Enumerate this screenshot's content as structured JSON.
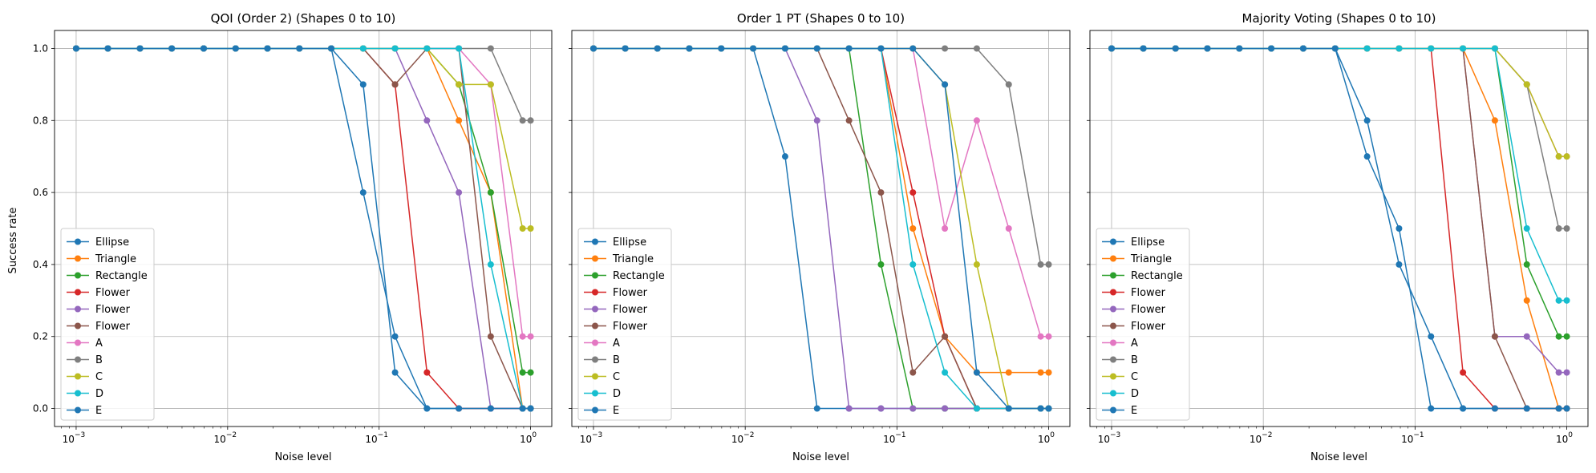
{
  "figure": {
    "ylabel": "Success rate"
  },
  "chart_data": [
    {
      "type": "line",
      "title": "QOI (Order 2) (Shapes 0 to 10)",
      "xlabel": "Noise level",
      "ylabel": "Success rate",
      "xscale": "log",
      "xlim": [
        0.00072,
        1.38
      ],
      "ylim": [
        -0.05,
        1.05
      ],
      "yticks": [
        "0.0",
        "0.2",
        "0.4",
        "0.6",
        "0.8",
        "1.0"
      ],
      "xticks": [
        {
          "base": "10",
          "exp": "−3"
        },
        {
          "base": "10",
          "exp": "−2"
        },
        {
          "base": "10",
          "exp": "−1"
        },
        {
          "base": "10",
          "exp": "0"
        }
      ],
      "grid": true,
      "legend": "lower-left",
      "x": [
        0.001,
        0.00162,
        0.00264,
        0.00428,
        0.00695,
        0.01129,
        0.01833,
        0.02976,
        0.04833,
        0.07848,
        0.12743,
        0.20691,
        0.33598,
        0.54556,
        0.88587,
        1.0
      ],
      "series": [
        {
          "name": "Ellipse",
          "color": "#1f77b4",
          "values": [
            1,
            1,
            1,
            1,
            1,
            1,
            1,
            1,
            1,
            0.6,
            0.2,
            0,
            0,
            0,
            0,
            0
          ]
        },
        {
          "name": "Triangle",
          "color": "#ff7f0e",
          "values": [
            1,
            1,
            1,
            1,
            1,
            1,
            1,
            1,
            1,
            1,
            1,
            1,
            0.8,
            0.6,
            0,
            0
          ]
        },
        {
          "name": "Rectangle",
          "color": "#2ca02c",
          "values": [
            1,
            1,
            1,
            1,
            1,
            1,
            1,
            1,
            1,
            1,
            1,
            1,
            0.9,
            0.6,
            0.1,
            0.1
          ]
        },
        {
          "name": "Flower",
          "color": "#d62728",
          "values": [
            1,
            1,
            1,
            1,
            1,
            1,
            1,
            1,
            1,
            1,
            0.9,
            0.1,
            0,
            0,
            0,
            0
          ]
        },
        {
          "name": "Flower",
          "color": "#9467bd",
          "values": [
            1,
            1,
            1,
            1,
            1,
            1,
            1,
            1,
            1,
            1,
            1,
            0.8,
            0.6,
            0,
            0,
            0
          ]
        },
        {
          "name": "Flower",
          "color": "#8c564b",
          "values": [
            1,
            1,
            1,
            1,
            1,
            1,
            1,
            1,
            1,
            1,
            0.9,
            1,
            1,
            0.2,
            0,
            0
          ]
        },
        {
          "name": "A",
          "color": "#e377c2",
          "values": [
            1,
            1,
            1,
            1,
            1,
            1,
            1,
            1,
            1,
            1,
            1,
            1,
            1,
            0.9,
            0.2,
            0.2
          ]
        },
        {
          "name": "B",
          "color": "#7f7f7f",
          "values": [
            1,
            1,
            1,
            1,
            1,
            1,
            1,
            1,
            1,
            1,
            1,
            1,
            1,
            1,
            0.8,
            0.8
          ]
        },
        {
          "name": "C",
          "color": "#bcbd22",
          "values": [
            1,
            1,
            1,
            1,
            1,
            1,
            1,
            1,
            1,
            1,
            1,
            1,
            0.9,
            0.9,
            0.5,
            0.5
          ]
        },
        {
          "name": "D",
          "color": "#17becf",
          "values": [
            1,
            1,
            1,
            1,
            1,
            1,
            1,
            1,
            1,
            1,
            1,
            1,
            1,
            0.4,
            0,
            0
          ]
        },
        {
          "name": "E",
          "color": "#1f77b4",
          "values": [
            1,
            1,
            1,
            1,
            1,
            1,
            1,
            1,
            1,
            0.9,
            0.1,
            0,
            0,
            0,
            0,
            0
          ]
        }
      ]
    },
    {
      "type": "line",
      "title": "Order 1 PT (Shapes 0 to 10)",
      "xlabel": "Noise level",
      "ylabel": "",
      "xscale": "log",
      "xlim": [
        0.00072,
        1.38
      ],
      "ylim": [
        -0.05,
        1.05
      ],
      "yticks": [
        "0.0",
        "0.2",
        "0.4",
        "0.6",
        "0.8",
        "1.0"
      ],
      "xticks": [
        {
          "base": "10",
          "exp": "−3"
        },
        {
          "base": "10",
          "exp": "−2"
        },
        {
          "base": "10",
          "exp": "−1"
        },
        {
          "base": "10",
          "exp": "0"
        }
      ],
      "grid": true,
      "legend": "lower-left",
      "x": [
        0.001,
        0.00162,
        0.00264,
        0.00428,
        0.00695,
        0.01129,
        0.01833,
        0.02976,
        0.04833,
        0.07848,
        0.12743,
        0.20691,
        0.33598,
        0.54556,
        0.88587,
        1.0
      ],
      "series": [
        {
          "name": "Ellipse",
          "color": "#1f77b4",
          "values": [
            1,
            1,
            1,
            1,
            1,
            1,
            0.7,
            0,
            0,
            0,
            0,
            0,
            0,
            0,
            0,
            0
          ]
        },
        {
          "name": "Triangle",
          "color": "#ff7f0e",
          "values": [
            1,
            1,
            1,
            1,
            1,
            1,
            1,
            1,
            1,
            1,
            0.5,
            0.2,
            0.1,
            0.1,
            0.1,
            0.1
          ]
        },
        {
          "name": "Rectangle",
          "color": "#2ca02c",
          "values": [
            1,
            1,
            1,
            1,
            1,
            1,
            1,
            1,
            1,
            0.4,
            0,
            0,
            0,
            0,
            0,
            0
          ]
        },
        {
          "name": "Flower",
          "color": "#d62728",
          "values": [
            1,
            1,
            1,
            1,
            1,
            1,
            1,
            1,
            1,
            1,
            0.6,
            0.2,
            0,
            0,
            0,
            0
          ]
        },
        {
          "name": "Flower",
          "color": "#9467bd",
          "values": [
            1,
            1,
            1,
            1,
            1,
            1,
            1,
            0.8,
            0,
            0,
            0,
            0,
            0,
            0,
            0,
            0
          ]
        },
        {
          "name": "Flower",
          "color": "#8c564b",
          "values": [
            1,
            1,
            1,
            1,
            1,
            1,
            1,
            1,
            0.8,
            0.6,
            0.1,
            0.2,
            0,
            0,
            0,
            0
          ]
        },
        {
          "name": "A",
          "color": "#e377c2",
          "values": [
            1,
            1,
            1,
            1,
            1,
            1,
            1,
            1,
            1,
            1,
            1,
            0.5,
            0.8,
            0.5,
            0.2,
            0.2
          ]
        },
        {
          "name": "B",
          "color": "#7f7f7f",
          "values": [
            1,
            1,
            1,
            1,
            1,
            1,
            1,
            1,
            1,
            1,
            1,
            1,
            1,
            0.9,
            0.4,
            0.4
          ]
        },
        {
          "name": "C",
          "color": "#bcbd22",
          "values": [
            1,
            1,
            1,
            1,
            1,
            1,
            1,
            1,
            1,
            1,
            1,
            0.9,
            0.4,
            0,
            0,
            0
          ]
        },
        {
          "name": "D",
          "color": "#17becf",
          "values": [
            1,
            1,
            1,
            1,
            1,
            1,
            1,
            1,
            1,
            1,
            0.4,
            0.1,
            0,
            0,
            0,
            0
          ]
        },
        {
          "name": "E",
          "color": "#1f77b4",
          "values": [
            1,
            1,
            1,
            1,
            1,
            1,
            1,
            1,
            1,
            1,
            1,
            0.9,
            0.1,
            0,
            0,
            0
          ]
        }
      ]
    },
    {
      "type": "line",
      "title": "Majority Voting (Shapes 0 to 10)",
      "xlabel": "Noise level",
      "ylabel": "",
      "xscale": "log",
      "xlim": [
        0.00072,
        1.38
      ],
      "ylim": [
        -0.05,
        1.05
      ],
      "yticks": [
        "0.0",
        "0.2",
        "0.4",
        "0.6",
        "0.8",
        "1.0"
      ],
      "xticks": [
        {
          "base": "10",
          "exp": "−3"
        },
        {
          "base": "10",
          "exp": "−2"
        },
        {
          "base": "10",
          "exp": "−1"
        },
        {
          "base": "10",
          "exp": "0"
        }
      ],
      "grid": true,
      "legend": "lower-left",
      "x": [
        0.001,
        0.00162,
        0.00264,
        0.00428,
        0.00695,
        0.01129,
        0.01833,
        0.02976,
        0.04833,
        0.07848,
        0.12743,
        0.20691,
        0.33598,
        0.54556,
        0.88587,
        1.0
      ],
      "series": [
        {
          "name": "Ellipse",
          "color": "#1f77b4",
          "values": [
            1,
            1,
            1,
            1,
            1,
            1,
            1,
            1,
            0.7,
            0.5,
            0,
            0,
            0,
            0,
            0,
            0
          ]
        },
        {
          "name": "Triangle",
          "color": "#ff7f0e",
          "values": [
            1,
            1,
            1,
            1,
            1,
            1,
            1,
            1,
            1,
            1,
            1,
            1,
            0.8,
            0.3,
            0,
            0
          ]
        },
        {
          "name": "Rectangle",
          "color": "#2ca02c",
          "values": [
            1,
            1,
            1,
            1,
            1,
            1,
            1,
            1,
            1,
            1,
            1,
            1,
            1,
            0.4,
            0.2,
            0.2
          ]
        },
        {
          "name": "Flower",
          "color": "#d62728",
          "values": [
            1,
            1,
            1,
            1,
            1,
            1,
            1,
            1,
            1,
            1,
            1,
            0.1,
            0,
            0,
            0,
            0
          ]
        },
        {
          "name": "Flower",
          "color": "#9467bd",
          "values": [
            1,
            1,
            1,
            1,
            1,
            1,
            1,
            1,
            1,
            1,
            1,
            1,
            0.2,
            0.2,
            0.1,
            0.1
          ]
        },
        {
          "name": "Flower",
          "color": "#8c564b",
          "values": [
            1,
            1,
            1,
            1,
            1,
            1,
            1,
            1,
            1,
            1,
            1,
            1,
            0.2,
            0,
            0,
            0
          ]
        },
        {
          "name": "A",
          "color": "#e377c2",
          "values": [
            1,
            1,
            1,
            1,
            1,
            1,
            1,
            1,
            1,
            1,
            1,
            1,
            1,
            0.9,
            0.7,
            0.7
          ]
        },
        {
          "name": "B",
          "color": "#7f7f7f",
          "values": [
            1,
            1,
            1,
            1,
            1,
            1,
            1,
            1,
            1,
            1,
            1,
            1,
            1,
            0.9,
            0.5,
            0.5
          ]
        },
        {
          "name": "C",
          "color": "#bcbd22",
          "values": [
            1,
            1,
            1,
            1,
            1,
            1,
            1,
            1,
            1,
            1,
            1,
            1,
            1,
            0.9,
            0.7,
            0.7
          ]
        },
        {
          "name": "D",
          "color": "#17becf",
          "values": [
            1,
            1,
            1,
            1,
            1,
            1,
            1,
            1,
            1,
            1,
            1,
            1,
            1,
            0.5,
            0.3,
            0.3
          ]
        },
        {
          "name": "E",
          "color": "#1f77b4",
          "values": [
            1,
            1,
            1,
            1,
            1,
            1,
            1,
            1,
            0.8,
            0.4,
            0.2,
            0,
            0,
            0,
            0,
            0
          ]
        }
      ]
    }
  ]
}
